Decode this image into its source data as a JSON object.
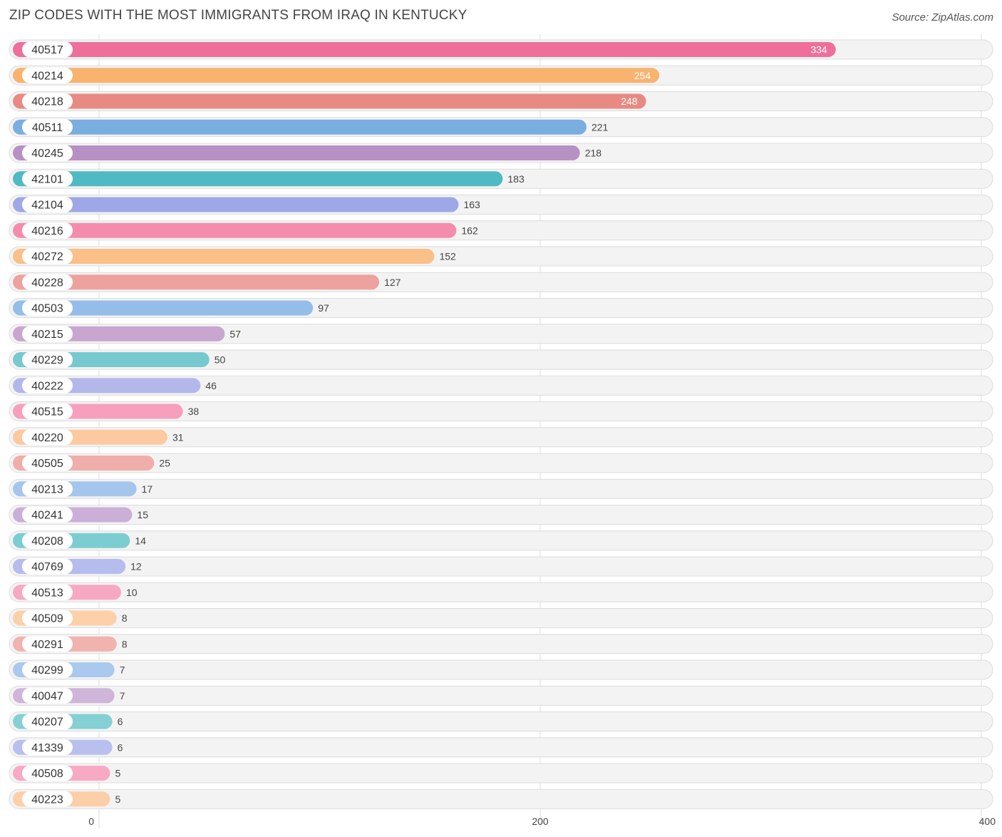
{
  "chart_data": {
    "type": "bar",
    "orientation": "horizontal",
    "title": "ZIP CODES WITH THE MOST IMMIGRANTS FROM IRAQ IN KENTUCKY",
    "source": "Source: ZipAtlas.com",
    "xlim": [
      0,
      400
    ],
    "xticks": [
      0,
      200,
      400
    ],
    "categories": [
      "40517",
      "40214",
      "40218",
      "40511",
      "40245",
      "42101",
      "42104",
      "40216",
      "40272",
      "40228",
      "40503",
      "40215",
      "40229",
      "40222",
      "40515",
      "40220",
      "40505",
      "40213",
      "40241",
      "40208",
      "40769",
      "40513",
      "40509",
      "40291",
      "40299",
      "40047",
      "40207",
      "41339",
      "40508",
      "40223"
    ],
    "values": [
      334,
      254,
      248,
      221,
      218,
      183,
      163,
      162,
      152,
      127,
      97,
      57,
      50,
      46,
      38,
      31,
      25,
      17,
      15,
      14,
      12,
      10,
      8,
      8,
      7,
      7,
      6,
      6,
      5,
      5
    ],
    "colors": [
      "#f06e9a",
      "#f8b36f",
      "#e88a82",
      "#7aaee0",
      "#b891c4",
      "#4fb9c4",
      "#9ea8e6",
      "#f48cae",
      "#fbbf88",
      "#eda29e",
      "#94bde9",
      "#c8a6d0",
      "#76c9cf",
      "#b2b8ea",
      "#f6a0bd",
      "#fcc9a0",
      "#f0aeaa",
      "#a5c6ec",
      "#cbafd8",
      "#7ccdd1",
      "#b6bcee",
      "#f7a8c2",
      "#fcd0a8",
      "#f0b3ae",
      "#a9c9ee",
      "#cfb5da",
      "#85d0d4",
      "#b9bfee",
      "#f8a9c4",
      "#fccfa8"
    ]
  }
}
